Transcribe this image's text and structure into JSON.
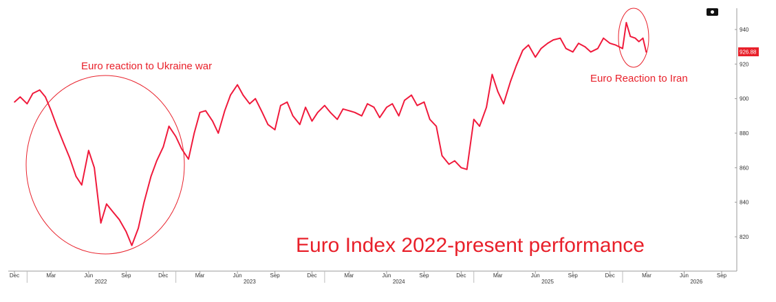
{
  "chart_data": {
    "type": "line",
    "title": "Euro Index 2022-present performance",
    "xlabel": "",
    "ylabel": "",
    "ylim": [
      800,
      950
    ],
    "y_ticks": [
      "820",
      "840",
      "860",
      "880",
      "900",
      "920",
      "940"
    ],
    "x_ticks": [
      "Dec",
      "Mar",
      "Jun",
      "Sep",
      "Dec",
      "Mar",
      "Jun",
      "Sep",
      "Dec",
      "Mar",
      "Jun",
      "Sep",
      "Dec",
      "Mar",
      "Jun",
      "Sep",
      "Dec",
      "Mar",
      "Jun",
      "Sep"
    ],
    "year_labels": [
      "2022",
      "2023",
      "2024",
      "2025",
      "2026"
    ],
    "grid": false,
    "legend": "none",
    "line_color": "#f0193b",
    "last_value_label": "926.88",
    "series": [
      {
        "x": [
          "2021-12-01",
          "2021-12-15",
          "2022-01-01",
          "2022-01-15",
          "2022-02-01",
          "2022-02-15",
          "2022-03-01",
          "2022-03-15",
          "2022-04-01",
          "2022-04-15",
          "2022-05-01",
          "2022-05-15",
          "2022-06-01",
          "2022-06-15",
          "2022-07-01",
          "2022-07-15",
          "2022-08-01",
          "2022-08-15",
          "2022-09-01",
          "2022-09-15",
          "2022-10-01",
          "2022-10-15",
          "2022-11-01",
          "2022-11-15",
          "2022-12-01",
          "2022-12-15",
          "2023-01-01",
          "2023-01-15",
          "2023-02-01",
          "2023-02-15",
          "2023-03-01",
          "2023-03-15",
          "2023-04-01",
          "2023-04-15",
          "2023-05-01",
          "2023-05-15",
          "2023-06-01",
          "2023-06-15",
          "2023-07-01",
          "2023-07-15",
          "2023-08-01",
          "2023-08-15",
          "2023-09-01",
          "2023-09-15",
          "2023-10-01",
          "2023-10-15",
          "2023-11-01",
          "2023-11-15",
          "2023-12-01",
          "2023-12-15",
          "2024-01-01",
          "2024-01-15",
          "2024-02-01",
          "2024-02-15",
          "2024-03-01",
          "2024-03-15",
          "2024-04-01",
          "2024-04-15",
          "2024-05-01",
          "2024-05-15",
          "2024-06-01",
          "2024-06-15",
          "2024-07-01",
          "2024-07-15",
          "2024-08-01",
          "2024-08-15",
          "2024-09-01",
          "2024-09-15",
          "2024-10-01",
          "2024-10-15",
          "2024-11-01",
          "2024-11-15",
          "2024-12-01",
          "2024-12-15",
          "2025-01-01",
          "2025-01-15",
          "2025-02-01",
          "2025-02-15",
          "2025-03-01",
          "2025-03-15",
          "2025-04-01",
          "2025-04-15",
          "2025-05-01",
          "2025-05-15",
          "2025-06-01",
          "2025-06-15",
          "2025-07-01",
          "2025-07-15",
          "2025-08-01",
          "2025-08-15",
          "2025-09-01",
          "2025-09-15",
          "2025-10-01",
          "2025-10-15",
          "2025-11-01",
          "2025-11-15",
          "2025-12-01",
          "2025-12-15",
          "2026-01-01",
          "2026-01-10",
          "2026-01-20",
          "2026-02-01",
          "2026-02-10",
          "2026-02-20",
          "2026-02-28"
        ],
        "y": [
          898,
          901,
          897,
          903,
          905,
          901,
          893,
          884,
          874,
          866,
          855,
          850,
          870,
          860,
          828,
          839,
          834,
          830,
          823,
          815,
          825,
          840,
          855,
          864,
          872,
          884,
          878,
          871,
          865,
          880,
          892,
          893,
          887,
          880,
          893,
          902,
          908,
          902,
          897,
          900,
          892,
          885,
          882,
          896,
          898,
          890,
          885,
          895,
          887,
          892,
          896,
          892,
          888,
          894,
          893,
          892,
          890,
          897,
          895,
          889,
          895,
          897,
          890,
          899,
          902,
          896,
          898,
          888,
          884,
          867,
          862,
          864,
          860,
          859,
          888,
          884,
          895,
          914,
          904,
          897,
          910,
          919,
          928,
          931,
          924,
          929,
          932,
          934,
          935,
          929,
          927,
          932,
          930,
          927,
          929,
          935,
          932,
          931,
          929,
          944,
          936,
          935,
          933,
          935,
          926.88
        ]
      }
    ],
    "annotations": [
      "Euro reaction to Ukraine war",
      "Euro Reaction to Iran"
    ]
  }
}
